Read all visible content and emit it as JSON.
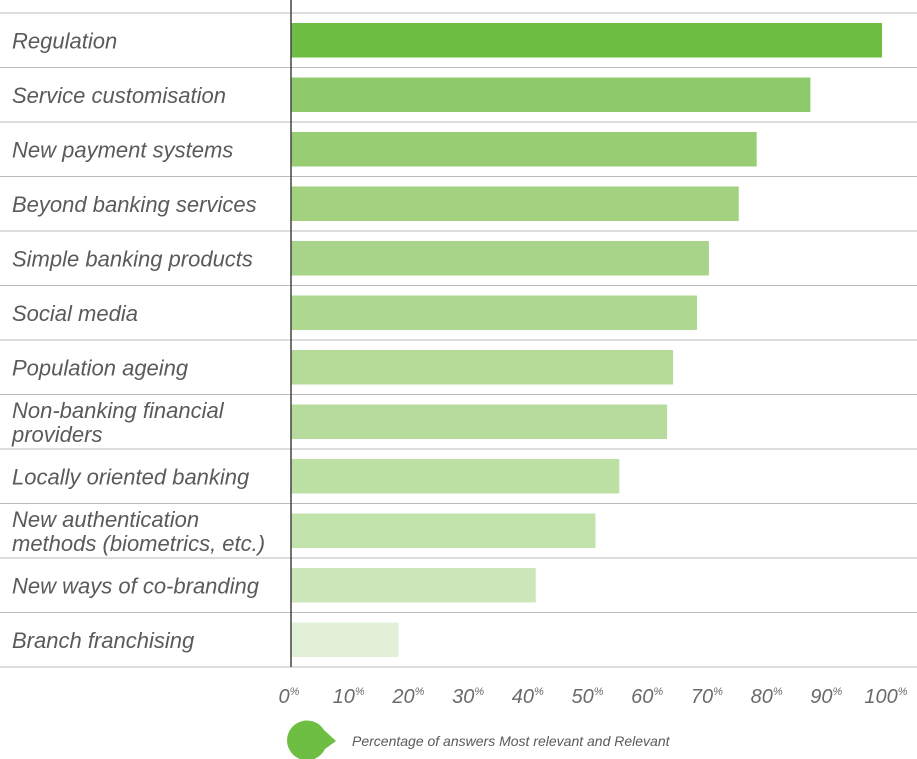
{
  "chart_data": {
    "type": "bar",
    "orientation": "horizontal",
    "categories": [
      "Regulation",
      "Service customisation",
      "New payment systems",
      "Beyond banking services",
      "Simple banking products",
      "Social media",
      "Population ageing",
      "Non-banking financial providers",
      "Locally oriented banking",
      "New authentication methods (biometrics, etc.)",
      "New ways of co-branding",
      "Branch franchising"
    ],
    "label_lines": [
      [
        "Regulation"
      ],
      [
        "Service customisation"
      ],
      [
        "New payment systems"
      ],
      [
        "Beyond banking services"
      ],
      [
        "Simple banking products"
      ],
      [
        "Social media"
      ],
      [
        "Population ageing"
      ],
      [
        "Non-banking financial",
        "providers"
      ],
      [
        "Locally oriented banking"
      ],
      [
        "New authentication",
        "methods (biometrics, etc.)"
      ],
      [
        "New ways of co-branding"
      ],
      [
        "Branch franchising"
      ]
    ],
    "values": [
      99,
      87,
      78,
      75,
      70,
      68,
      64,
      63,
      55,
      51,
      41,
      18
    ],
    "bar_colors": [
      "#6fbe44",
      "#8ec96a",
      "#98cd74",
      "#a2d280",
      "#a8d489",
      "#aed790",
      "#b4da98",
      "#b7db9c",
      "#bde0a4",
      "#c3e3ad",
      "#cde7bb",
      "#e2f0d8"
    ],
    "xlim": [
      0,
      100
    ],
    "ticks": [
      0,
      10,
      20,
      30,
      40,
      50,
      60,
      70,
      80,
      90,
      100
    ],
    "tick_number_labels": [
      "0",
      "10",
      "20",
      "30",
      "40",
      "50",
      "60",
      "70",
      "80",
      "90",
      "100"
    ],
    "tick_unit": "%",
    "grid": false,
    "legend": {
      "label": "Percentage of answers Most relevant and Relevant",
      "position": "bottom",
      "color": "#6fbe44"
    },
    "colors": {
      "separator": "#bbbbbb",
      "axis": "#444444",
      "label_text": "#5a5a5a",
      "tick_text": "#6a6a6a"
    }
  }
}
